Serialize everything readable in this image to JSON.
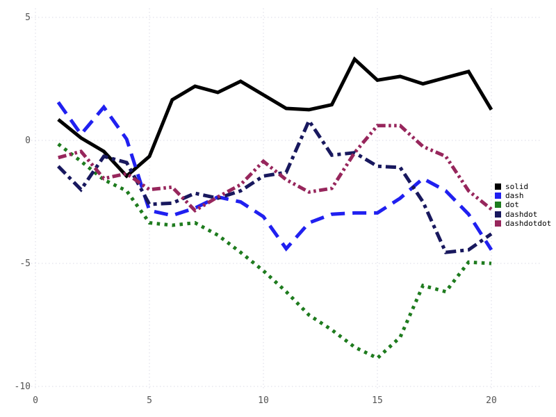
{
  "chart_data": {
    "type": "line",
    "title": "",
    "xlabel": "",
    "ylabel": "",
    "xlim": [
      0,
      20
    ],
    "ylim": [
      -10,
      5
    ],
    "x_ticks": [
      0,
      5,
      10,
      15,
      20
    ],
    "y_ticks": [
      -10,
      -5,
      0,
      5
    ],
    "grid": true,
    "grid_style": "dotted",
    "grid_color": "#d9d9e6",
    "tick_label_color": "#545454",
    "legend_position": "right",
    "x": [
      1,
      2,
      3,
      4,
      5,
      6,
      7,
      8,
      9,
      10,
      11,
      12,
      13,
      14,
      15,
      16,
      17,
      18,
      19,
      20
    ],
    "series": [
      {
        "name": "solid",
        "color": "#000000",
        "line_style": "solid",
        "values": [
          0.85,
          0.1,
          -0.45,
          -1.45,
          -0.65,
          1.65,
          2.2,
          1.95,
          2.4,
          1.85,
          1.3,
          1.25,
          1.45,
          3.3,
          2.45,
          2.6,
          2.3,
          2.55,
          2.8,
          1.25
        ]
      },
      {
        "name": "dash",
        "color": "#2020f0",
        "line_style": "dash",
        "values": [
          1.55,
          0.25,
          1.35,
          0.05,
          -2.85,
          -3.05,
          -2.75,
          -2.3,
          -2.5,
          -3.1,
          -4.4,
          -3.35,
          -3.0,
          -2.95,
          -2.95,
          -2.35,
          -1.55,
          -2.05,
          -3.0,
          -4.45
        ]
      },
      {
        "name": "dot",
        "color": "#1e7b1e",
        "line_style": "dot",
        "values": [
          -0.15,
          -0.85,
          -1.6,
          -2.05,
          -3.35,
          -3.45,
          -3.35,
          -3.85,
          -4.55,
          -5.3,
          -6.15,
          -7.1,
          -7.7,
          -8.4,
          -8.85,
          -8.0,
          -5.9,
          -6.15,
          -4.95,
          -5.0
        ]
      },
      {
        "name": "dashdot",
        "color": "#18185e",
        "line_style": "dashdot",
        "values": [
          -1.05,
          -2.0,
          -0.65,
          -0.9,
          -2.6,
          -2.55,
          -2.15,
          -2.35,
          -2.05,
          -1.45,
          -1.3,
          0.8,
          -0.6,
          -0.5,
          -1.05,
          -1.1,
          -2.5,
          -4.55,
          -4.45,
          -3.8
        ]
      },
      {
        "name": "dashdotdot",
        "color": "#97265c",
        "line_style": "dashdotdot",
        "values": [
          -0.7,
          -0.45,
          -1.55,
          -1.35,
          -2.0,
          -1.9,
          -2.85,
          -2.3,
          -1.8,
          -0.85,
          -1.6,
          -2.1,
          -1.95,
          -0.5,
          0.6,
          0.6,
          -0.25,
          -0.65,
          -2.05,
          -2.8
        ]
      }
    ]
  },
  "legend": {
    "items": [
      {
        "label": "solid"
      },
      {
        "label": "dash"
      },
      {
        "label": "dot"
      },
      {
        "label": "dashdot"
      },
      {
        "label": "dashdotdot"
      }
    ]
  }
}
